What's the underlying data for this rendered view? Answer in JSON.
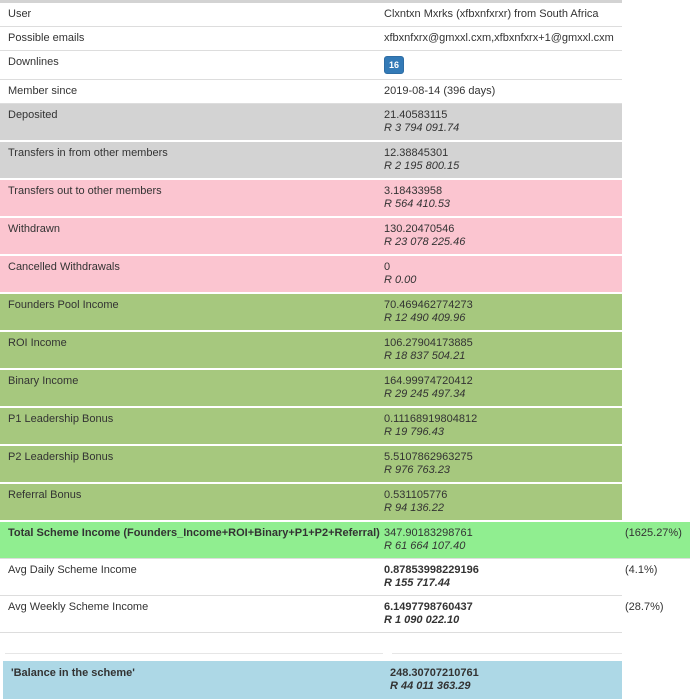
{
  "colors": {
    "row_gray": "#d3d3d3",
    "row_pink": "#fbc5d0",
    "row_green": "#a6c87e",
    "row_total_green": "#90ee90",
    "row_balance_blue": "#add8e6",
    "badge_blue": "#337ab7",
    "border": "#dddddd",
    "text": "#333333"
  },
  "table": {
    "rows": [
      {
        "label": "User",
        "value": "Clxntxn Mxrks (xfbxnfxrxr) from South Africa"
      },
      {
        "label": "Possible emails",
        "value": "xfbxnfxrx@gmxxl.cxm,xfbxnfxrx+1@gmxxl.cxm"
      },
      {
        "label": "Downlines",
        "badge": "16"
      },
      {
        "label": "Member since",
        "value": "2019-08-14 (396 days)"
      },
      {
        "label": "Deposited",
        "value": "21.40583115",
        "rand": "R 3 794 091.74"
      },
      {
        "label": "Transfers in from other members",
        "value": "12.38845301",
        "rand": "R 2 195 800.15"
      },
      {
        "label": "Transfers out to other members",
        "value": "3.18433958",
        "rand": "R 564 410.53"
      },
      {
        "label": "Withdrawn",
        "value": "130.20470546",
        "rand": "R 23 078 225.46"
      },
      {
        "label": "Cancelled Withdrawals",
        "value": "0",
        "rand": "R 0.00"
      },
      {
        "label": "Founders Pool Income",
        "value": "70.469462774273",
        "rand": "R 12 490 409.96"
      },
      {
        "label": "ROI Income",
        "value": "106.27904173885",
        "rand": "R 18 837 504.21"
      },
      {
        "label": "Binary Income",
        "value": "164.99974720412",
        "rand": "R 29 245 497.34"
      },
      {
        "label": "P1 Leadership Bonus",
        "value": "0.11168919804812",
        "rand": "R 19 796.43"
      },
      {
        "label": "P2 Leadership Bonus",
        "value": "5.5107862963275",
        "rand": "R 976 763.23"
      },
      {
        "label": "Referral Bonus",
        "value": "0.531105776",
        "rand": "R 94 136.22"
      },
      {
        "label": "Total Scheme Income (Founders_Income+ROI+Binary+P1+P2+Referral)",
        "value": "347.90183298761",
        "rand": "R 61 664 107.40",
        "percent": "(1625.27%)"
      },
      {
        "label": "Avg Daily Scheme Income",
        "value": "0.87853998229196",
        "rand": "R 155 717.44",
        "percent": "(4.1%)"
      },
      {
        "label": "Avg Weekly Scheme Income",
        "value": "6.1497798760437",
        "rand": "R 1 090 022.10",
        "percent": "(28.7%)"
      }
    ],
    "balance": {
      "label": "'Balance in the scheme'",
      "value": "248.30707210761",
      "rand": "R 44 011 363.29"
    }
  }
}
